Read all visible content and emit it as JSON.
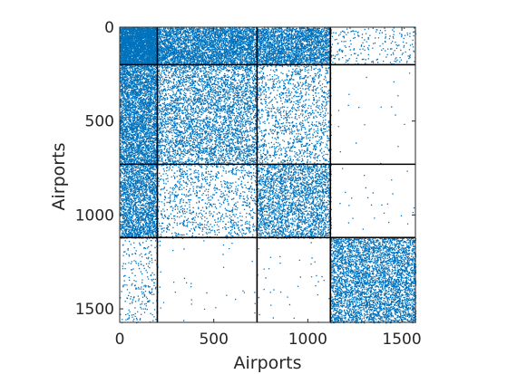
{
  "chart_data": {
    "type": "heatmap",
    "subtype": "sparsity-pattern",
    "title": "",
    "xlabel": "Airports",
    "ylabel": "Airports",
    "xlim": [
      0,
      1572
    ],
    "ylim": [
      0,
      1572
    ],
    "y_reversed": true,
    "x_ticks": [
      0,
      500,
      1000,
      1500
    ],
    "y_ticks": [
      0,
      500,
      1000,
      1500
    ],
    "x_tick_labels": [
      "0",
      "500",
      "1000",
      "1500"
    ],
    "y_tick_labels": [
      "0",
      "500",
      "1000",
      "1500"
    ],
    "grid": false,
    "block_boundaries": [
      200,
      730,
      1120
    ],
    "marker_color": "#0072BD",
    "line_color": "#000000",
    "blocks": [
      {
        "rows": [
          0,
          200
        ],
        "cols": [
          0,
          200
        ],
        "density": 0.9
      },
      {
        "rows": [
          0,
          200
        ],
        "cols": [
          200,
          730
        ],
        "density": 0.45
      },
      {
        "rows": [
          0,
          200
        ],
        "cols": [
          730,
          1120
        ],
        "density": 0.4
      },
      {
        "rows": [
          0,
          200
        ],
        "cols": [
          1120,
          1572
        ],
        "density": 0.03
      },
      {
        "rows": [
          200,
          730
        ],
        "cols": [
          0,
          200
        ],
        "density": 0.42
      },
      {
        "rows": [
          200,
          730
        ],
        "cols": [
          200,
          730
        ],
        "density": 0.2
      },
      {
        "rows": [
          200,
          730
        ],
        "cols": [
          730,
          1120
        ],
        "density": 0.09
      },
      {
        "rows": [
          200,
          730
        ],
        "cols": [
          1120,
          1572
        ],
        "density": 0.001
      },
      {
        "rows": [
          730,
          1120
        ],
        "cols": [
          0,
          200
        ],
        "density": 0.35
      },
      {
        "rows": [
          730,
          1120
        ],
        "cols": [
          200,
          730
        ],
        "density": 0.07
      },
      {
        "rows": [
          730,
          1120
        ],
        "cols": [
          730,
          1120
        ],
        "density": 0.22
      },
      {
        "rows": [
          730,
          1120
        ],
        "cols": [
          1120,
          1572
        ],
        "density": 0.002
      },
      {
        "rows": [
          1120,
          1572
        ],
        "cols": [
          0,
          200
        ],
        "density": 0.04
      },
      {
        "rows": [
          1120,
          1572
        ],
        "cols": [
          200,
          730
        ],
        "density": 0.002
      },
      {
        "rows": [
          1120,
          1572
        ],
        "cols": [
          730,
          1120
        ],
        "density": 0.003
      },
      {
        "rows": [
          1120,
          1572
        ],
        "cols": [
          1120,
          1572
        ],
        "density": 0.28
      }
    ]
  }
}
